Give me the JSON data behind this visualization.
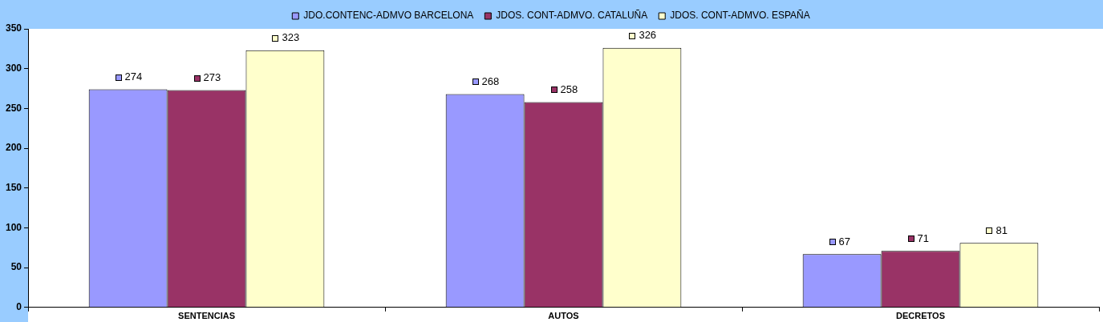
{
  "chart_data": {
    "type": "bar",
    "categories": [
      "SENTENCIAS",
      "AUTOS",
      "DECRETOS"
    ],
    "series": [
      {
        "name": "JDO.CONTENC-ADMVO BARCELONA",
        "color": "#9999ff",
        "values": [
          274,
          268,
          67
        ]
      },
      {
        "name": "JDOS. CONT-ADMVO. CATALUÑA",
        "color": "#993366",
        "values": [
          273,
          258,
          71
        ]
      },
      {
        "name": "JDOS. CONT-ADMVO. ESPAÑA",
        "color": "#ffffcc",
        "values": [
          323,
          326,
          81
        ]
      }
    ],
    "ylim": [
      0,
      350
    ],
    "yticks": [
      0,
      50,
      100,
      150,
      200,
      250,
      300,
      350
    ],
    "grid": false,
    "legend": "top",
    "data_labels": true
  }
}
